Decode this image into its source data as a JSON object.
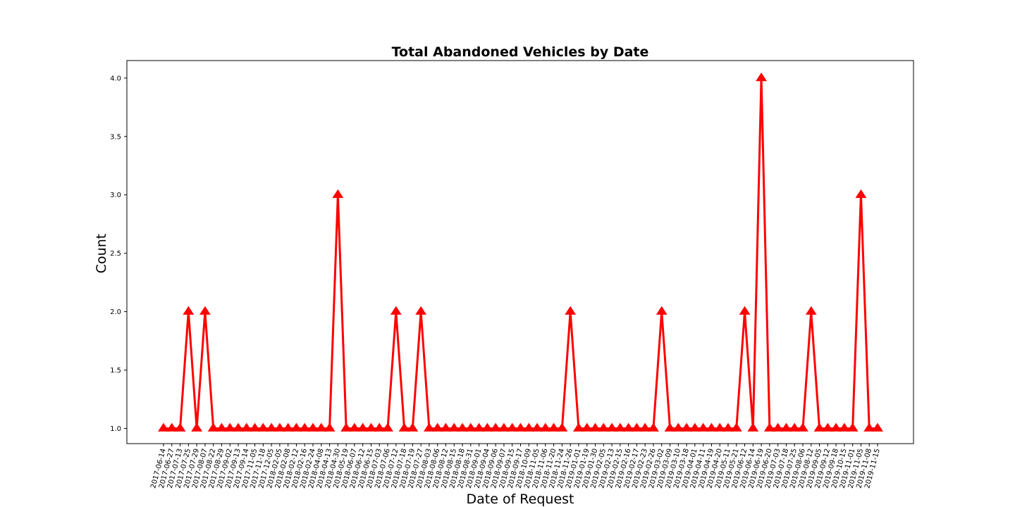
{
  "chart_data": {
    "type": "line",
    "title": "Total Abandoned Vehicles by Date",
    "xlabel": "Date of Request",
    "ylabel": "Count",
    "ylim": [
      0.87,
      4.15
    ],
    "yticks": [
      "1.0",
      "1.5",
      "2.0",
      "2.5",
      "3.0",
      "3.5",
      "4.0"
    ],
    "grid": false,
    "legend": "none",
    "color": "#ff0000",
    "marker": "triangle-up",
    "x": [
      "2017-06-14",
      "2017-06-27",
      "2017-07-13",
      "2017-07-25",
      "2017-07-29",
      "2017-08-07",
      "2017-08-22",
      "2017-08-29",
      "2017-09-02",
      "2017-09-13",
      "2017-09-14",
      "2017-11-05",
      "2017-11-18",
      "2017-12-05",
      "2018-02-05",
      "2018-02-08",
      "2018-02-12",
      "2018-02-16",
      "2018-02-24",
      "2018-04-08",
      "2018-04-13",
      "2018-04-30",
      "2018-05-19",
      "2018-06-07",
      "2018-06-12",
      "2018-06-15",
      "2018-07-03",
      "2018-07-06",
      "2018-07-12",
      "2018-07-18",
      "2018-07-19",
      "2018-07-27",
      "2018-08-03",
      "2018-08-06",
      "2018-08-12",
      "2018-08-15",
      "2018-08-18",
      "2018-08-31",
      "2018-09-01",
      "2018-09-04",
      "2018-09-06",
      "2018-09-07",
      "2018-09-15",
      "2018-09-17",
      "2018-10-09",
      "2018-11-05",
      "2018-11-06",
      "2018-11-20",
      "2018-11-24",
      "2018-11-26",
      "2019-01-01",
      "2019-01-19",
      "2019-01-30",
      "2019-02-05",
      "2019-02-13",
      "2019-02-15",
      "2019-02-16",
      "2019-02-17",
      "2019-02-23",
      "2019-02-26",
      "2019-03-02",
      "2019-03-09",
      "2019-03-10",
      "2019-03-18",
      "2019-04-01",
      "2019-04-11",
      "2019-04-19",
      "2019-04-20",
      "2019-05-11",
      "2019-05-21",
      "2019-06-12",
      "2019-06-14",
      "2019-06-19",
      "2019-06-20",
      "2019-07-03",
      "2019-07-18",
      "2019-07-25",
      "2019-08-06",
      "2019-08-12",
      "2019-09-05",
      "2019-09-12",
      "2019-09-18",
      "2019-10-15",
      "2019-11-01",
      "2019-11-05",
      "2019-11-08",
      "2019-11-15"
    ],
    "series": [
      {
        "values": [
          1,
          1,
          1,
          2,
          1,
          2,
          1,
          1,
          1,
          1,
          1,
          1,
          1,
          1,
          1,
          1,
          1,
          1,
          1,
          1,
          1,
          3,
          1,
          1,
          1,
          1,
          1,
          1,
          2,
          1,
          1,
          2,
          1,
          1,
          1,
          1,
          1,
          1,
          1,
          1,
          1,
          1,
          1,
          1,
          1,
          1,
          1,
          1,
          1,
          2,
          1,
          1,
          1,
          1,
          1,
          1,
          1,
          1,
          1,
          1,
          2,
          1,
          1,
          1,
          1,
          1,
          1,
          1,
          1,
          1,
          2,
          1,
          4,
          1,
          1,
          1,
          1,
          1,
          2,
          1,
          1,
          1,
          1,
          1,
          3,
          1,
          1
        ]
      }
    ]
  }
}
